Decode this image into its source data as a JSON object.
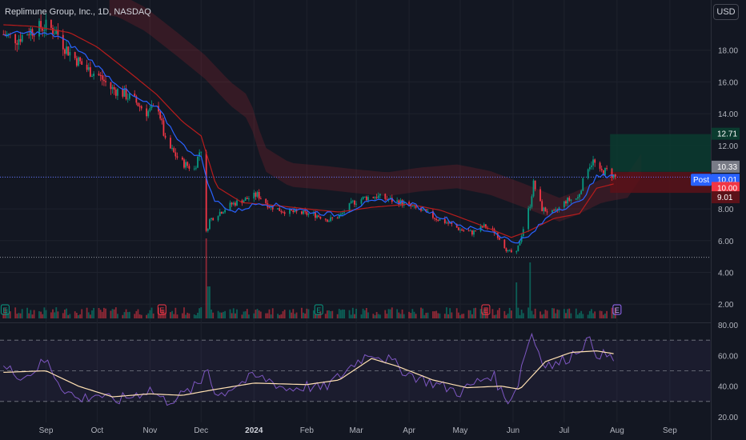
{
  "header": {
    "title": "Replimune Group, Inc., 1D, NASDAQ"
  },
  "currency_button": {
    "label": "USD"
  },
  "colors": {
    "background": "#131722",
    "up": "#089981",
    "down": "#f23645",
    "grid": "#1e222d",
    "axis_text": "#b2b5be",
    "sma_fast": "#2962ff",
    "sma_slow": "#b71c1c",
    "rsi_line": "#7e57c2",
    "rsi_ma": "#ffe0b2",
    "target_zone": "#0b3b2f",
    "stop_zone": "#5b1219"
  },
  "price_axis": {
    "ticks": [
      "18.00",
      "16.00",
      "14.00",
      "12.00",
      "10.00",
      "8.00",
      "6.00",
      "4.00",
      "2.00"
    ]
  },
  "rsi_axis": {
    "ticks": [
      "80.00",
      "60.00",
      "40.00",
      "20.00"
    ]
  },
  "time_axis": {
    "ticks": [
      "Sep",
      "Oct",
      "Nov",
      "Dec",
      "2024",
      "Feb",
      "Mar",
      "Apr",
      "May",
      "Jun",
      "Jul",
      "Aug",
      "Sep"
    ]
  },
  "price_labels": [
    {
      "text": "12.71",
      "kind": "target"
    },
    {
      "text": "10.33",
      "kind": "gray"
    },
    {
      "text": "Post",
      "kind": "post"
    },
    {
      "text": "10.01",
      "kind": "post"
    },
    {
      "text": "10.00",
      "kind": "last"
    },
    {
      "text": "9.01",
      "kind": "stop"
    }
  ],
  "earnings_markers": [
    {
      "text": "E",
      "date": "2023-08-08"
    },
    {
      "text": "E",
      "date": "2023-11-08"
    },
    {
      "text": "E",
      "date": "2024-02-08"
    },
    {
      "text": "E",
      "date": "2024-05-16"
    },
    {
      "text": "E",
      "date": "2024-08-01"
    }
  ],
  "chart_data": {
    "type": "candlestick",
    "title": "Replimune Group, Inc., 1D, NASDAQ",
    "x_range": [
      "2023-08-05",
      "2024-09-25"
    ],
    "ylim": [
      1.0,
      19.8
    ],
    "rsi_ylim": [
      20,
      80
    ],
    "rsi_levels": [
      70,
      50,
      30
    ],
    "horizontal_lines": [
      10.0,
      4.95
    ],
    "position": {
      "entry": 10.33,
      "target": 12.71,
      "stop": 9.01,
      "start": "2024-07-27",
      "end": "2024-09-05"
    },
    "series": [
      {
        "name": "price",
        "points": [
          [
            "2023-08-07",
            19.0
          ],
          [
            "2023-08-15",
            18.7
          ],
          [
            "2023-08-22",
            19.2
          ],
          [
            "2023-08-28",
            19.4
          ],
          [
            "2023-09-01",
            19.5
          ],
          [
            "2023-09-07",
            19.2
          ],
          [
            "2023-09-12",
            18.2
          ],
          [
            "2023-09-18",
            17.5
          ],
          [
            "2023-09-25",
            16.8
          ],
          [
            "2023-10-02",
            16.4
          ],
          [
            "2023-10-09",
            15.6
          ],
          [
            "2023-10-16",
            15.3
          ],
          [
            "2023-10-23",
            14.8
          ],
          [
            "2023-10-30",
            14.1
          ],
          [
            "2023-11-06",
            14.4
          ],
          [
            "2023-11-10",
            12.2
          ],
          [
            "2023-11-15",
            11.5
          ],
          [
            "2023-11-20",
            10.9
          ],
          [
            "2023-11-27",
            10.5
          ],
          [
            "2023-11-30",
            11.6
          ],
          [
            "2023-12-01",
            11.8
          ],
          [
            "2023-12-04",
            6.5
          ],
          [
            "2023-12-06",
            7.3
          ],
          [
            "2023-12-12",
            7.8
          ],
          [
            "2023-12-19",
            8.3
          ],
          [
            "2023-12-27",
            8.6
          ],
          [
            "2024-01-03",
            8.9
          ],
          [
            "2024-01-10",
            8.2
          ],
          [
            "2024-01-17",
            7.9
          ],
          [
            "2024-01-24",
            7.8
          ],
          [
            "2024-01-31",
            7.7
          ],
          [
            "2024-02-07",
            7.6
          ],
          [
            "2024-02-14",
            7.3
          ],
          [
            "2024-02-21",
            7.6
          ],
          [
            "2024-02-28",
            8.4
          ],
          [
            "2024-03-06",
            8.7
          ],
          [
            "2024-03-13",
            8.8
          ],
          [
            "2024-03-20",
            8.6
          ],
          [
            "2024-03-27",
            8.4
          ],
          [
            "2024-04-03",
            8.1
          ],
          [
            "2024-04-10",
            7.8
          ],
          [
            "2024-04-17",
            7.4
          ],
          [
            "2024-04-24",
            7.1
          ],
          [
            "2024-05-01",
            6.7
          ],
          [
            "2024-05-08",
            6.5
          ],
          [
            "2024-05-15",
            6.9
          ],
          [
            "2024-05-22",
            6.5
          ],
          [
            "2024-05-29",
            5.3
          ],
          [
            "2024-06-03",
            5.2
          ],
          [
            "2024-06-06",
            6.4
          ],
          [
            "2024-06-11",
            8.3
          ],
          [
            "2024-06-13",
            9.6
          ],
          [
            "2024-06-18",
            8.0
          ],
          [
            "2024-06-25",
            7.7
          ],
          [
            "2024-07-02",
            8.5
          ],
          [
            "2024-07-09",
            8.7
          ],
          [
            "2024-07-15",
            10.7
          ],
          [
            "2024-07-18",
            11.0
          ],
          [
            "2024-07-22",
            10.3
          ],
          [
            "2024-07-26",
            10.4
          ],
          [
            "2024-07-31",
            10.0
          ]
        ]
      },
      {
        "name": "sma_fast",
        "points": [
          [
            "2023-08-07",
            19.0
          ],
          [
            "2023-08-25",
            19.1
          ],
          [
            "2023-09-08",
            18.9
          ],
          [
            "2023-09-25",
            17.6
          ],
          [
            "2023-10-09",
            16.2
          ],
          [
            "2023-10-23",
            15.0
          ],
          [
            "2023-11-06",
            14.3
          ],
          [
            "2023-11-20",
            12.0
          ],
          [
            "2023-12-01",
            11.2
          ],
          [
            "2023-12-08",
            8.6
          ],
          [
            "2023-12-20",
            7.8
          ],
          [
            "2024-01-05",
            8.4
          ],
          [
            "2024-01-20",
            8.1
          ],
          [
            "2024-02-05",
            7.8
          ],
          [
            "2024-02-20",
            7.6
          ],
          [
            "2024-03-05",
            8.3
          ],
          [
            "2024-03-20",
            8.6
          ],
          [
            "2024-04-05",
            8.2
          ],
          [
            "2024-04-20",
            7.5
          ],
          [
            "2024-05-05",
            6.8
          ],
          [
            "2024-05-20",
            6.6
          ],
          [
            "2024-06-01",
            5.9
          ],
          [
            "2024-06-10",
            6.2
          ],
          [
            "2024-06-25",
            7.9
          ],
          [
            "2024-07-10",
            8.4
          ],
          [
            "2024-07-20",
            10.0
          ],
          [
            "2024-07-31",
            10.2
          ]
        ]
      },
      {
        "name": "sma_slow",
        "points": [
          [
            "2023-08-07",
            19.6
          ],
          [
            "2023-08-25",
            19.5
          ],
          [
            "2023-09-15",
            19.1
          ],
          [
            "2023-10-01",
            18.2
          ],
          [
            "2023-10-20",
            16.6
          ],
          [
            "2023-11-05",
            15.2
          ],
          [
            "2023-11-20",
            13.5
          ],
          [
            "2023-12-01",
            12.6
          ],
          [
            "2023-12-10",
            9.4
          ],
          [
            "2023-12-25",
            8.4
          ],
          [
            "2024-01-15",
            8.2
          ],
          [
            "2024-02-01",
            8.0
          ],
          [
            "2024-02-20",
            7.8
          ],
          [
            "2024-03-10",
            8.1
          ],
          [
            "2024-04-01",
            8.3
          ],
          [
            "2024-04-20",
            7.9
          ],
          [
            "2024-05-10",
            7.1
          ],
          [
            "2024-05-31",
            6.2
          ],
          [
            "2024-06-10",
            6.6
          ],
          [
            "2024-06-25",
            7.4
          ],
          [
            "2024-07-10",
            7.7
          ],
          [
            "2024-07-20",
            9.3
          ],
          [
            "2024-07-31",
            9.6
          ]
        ]
      },
      {
        "name": "rsi",
        "points": [
          [
            "2023-08-07",
            52
          ],
          [
            "2023-08-20",
            46
          ],
          [
            "2023-09-01",
            57
          ],
          [
            "2023-09-10",
            40
          ],
          [
            "2023-09-20",
            31
          ],
          [
            "2023-10-01",
            35
          ],
          [
            "2023-10-10",
            30
          ],
          [
            "2023-10-20",
            33
          ],
          [
            "2023-11-01",
            38
          ],
          [
            "2023-11-10",
            30
          ],
          [
            "2023-11-20",
            34
          ],
          [
            "2023-12-01",
            42
          ],
          [
            "2023-12-04",
            55
          ],
          [
            "2023-12-10",
            33
          ],
          [
            "2023-12-20",
            40
          ],
          [
            "2024-01-01",
            46
          ],
          [
            "2024-01-10",
            44
          ],
          [
            "2024-01-20",
            38
          ],
          [
            "2024-02-01",
            40
          ],
          [
            "2024-02-10",
            38
          ],
          [
            "2024-02-20",
            46
          ],
          [
            "2024-03-01",
            56
          ],
          [
            "2024-03-10",
            62
          ],
          [
            "2024-03-20",
            57
          ],
          [
            "2024-04-01",
            48
          ],
          [
            "2024-04-10",
            44
          ],
          [
            "2024-04-20",
            40
          ],
          [
            "2024-05-01",
            36
          ],
          [
            "2024-05-10",
            42
          ],
          [
            "2024-05-20",
            48
          ],
          [
            "2024-05-28",
            30
          ],
          [
            "2024-06-03",
            38
          ],
          [
            "2024-06-08",
            62
          ],
          [
            "2024-06-12",
            74
          ],
          [
            "2024-06-18",
            57
          ],
          [
            "2024-06-25",
            53
          ],
          [
            "2024-07-05",
            60
          ],
          [
            "2024-07-15",
            70
          ],
          [
            "2024-07-20",
            62
          ],
          [
            "2024-07-31",
            57
          ]
        ]
      },
      {
        "name": "rsi_ma",
        "points": [
          [
            "2023-08-07",
            49
          ],
          [
            "2023-09-01",
            50
          ],
          [
            "2023-09-20",
            40
          ],
          [
            "2023-10-10",
            33
          ],
          [
            "2023-11-01",
            35
          ],
          [
            "2023-11-20",
            34
          ],
          [
            "2023-12-10",
            38
          ],
          [
            "2024-01-01",
            42
          ],
          [
            "2024-02-01",
            41
          ],
          [
            "2024-02-20",
            44
          ],
          [
            "2024-03-10",
            58
          ],
          [
            "2024-03-25",
            53
          ],
          [
            "2024-04-15",
            44
          ],
          [
            "2024-05-05",
            39
          ],
          [
            "2024-05-25",
            40
          ],
          [
            "2024-06-05",
            38
          ],
          [
            "2024-06-20",
            56
          ],
          [
            "2024-07-05",
            62
          ],
          [
            "2024-07-20",
            63
          ],
          [
            "2024-07-31",
            61
          ]
        ]
      }
    ]
  }
}
